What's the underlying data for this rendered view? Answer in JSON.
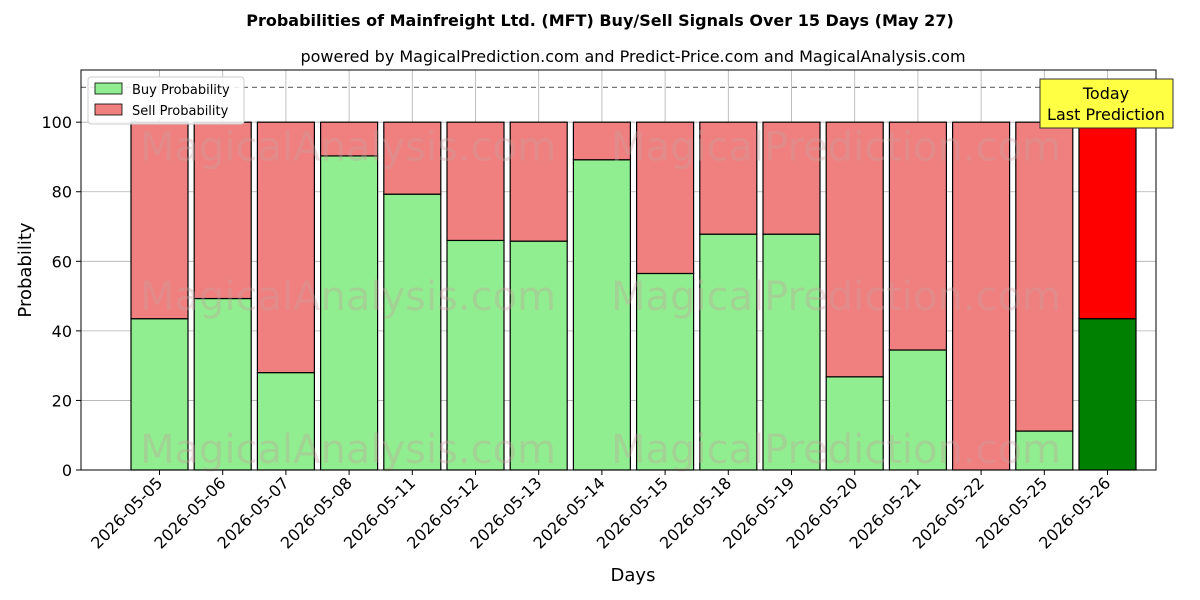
{
  "chart_data": {
    "type": "bar",
    "stacked": true,
    "title": "Probabilities of Mainfreight Ltd. (MFT) Buy/Sell Signals Over 15 Days (May 27)",
    "subtitle": "powered by MagicalPrediction.com and Predict-Price.com and MagicalAnalysis.com",
    "xlabel": "Days",
    "ylabel": "Probability",
    "ylim": [
      0,
      115
    ],
    "yticks": [
      0,
      20,
      40,
      60,
      80,
      100
    ],
    "reference_line": 110,
    "grid": true,
    "legend_position": "top-left",
    "categories": [
      "2026-05-05",
      "2026-05-06",
      "2026-05-07",
      "2026-05-08",
      "2026-05-11",
      "2026-05-12",
      "2026-05-13",
      "2026-05-14",
      "2026-05-15",
      "2026-05-18",
      "2026-05-19",
      "2026-05-20",
      "2026-05-21",
      "2026-05-22",
      "2026-05-25",
      "2026-05-26"
    ],
    "series": [
      {
        "name": "Buy Probability",
        "color": "#90ee90",
        "highlight_color": "#008000",
        "values": [
          43.5,
          49.3,
          28.0,
          90.3,
          79.3,
          66.0,
          65.8,
          89.2,
          56.5,
          67.8,
          67.8,
          26.8,
          34.5,
          0.0,
          11.2,
          43.5
        ]
      },
      {
        "name": "Sell Probability",
        "color": "#f08080",
        "highlight_color": "#ff0000",
        "values": [
          56.5,
          50.7,
          72.0,
          9.7,
          20.7,
          34.0,
          34.2,
          10.8,
          43.5,
          32.2,
          32.2,
          73.2,
          65.5,
          100.0,
          88.8,
          56.5
        ]
      }
    ],
    "highlight_index": 15,
    "annotation": {
      "line1": "Today",
      "line2": "Last Prediction",
      "bg_color": "#ffff44"
    },
    "watermarks": [
      "MagicalAnalysis.com",
      "MagicalPrediction.com"
    ]
  }
}
